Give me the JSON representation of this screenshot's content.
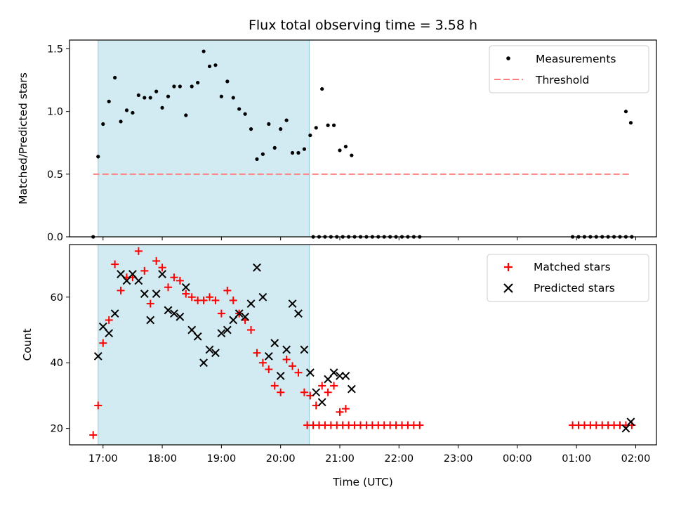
{
  "chart_data": [
    {
      "type": "scatter",
      "panel": "top",
      "title": "Flux total observing time = 3.58 h",
      "xlabel": "",
      "ylabel": "Matched/Predicted stars",
      "xlim": [
        "16:26",
        "02:21"
      ],
      "ylim": [
        0,
        1.57
      ],
      "yticks": [
        "0.0",
        "0.5",
        "1.0",
        "1.5"
      ],
      "shaded_interval": [
        "16:55",
        "20:29"
      ],
      "legend_position": "top-right",
      "series": [
        {
          "name": "Measurements",
          "kind": "points",
          "color": "#000000",
          "points": [
            [
              "16:50",
              0.0
            ],
            [
              "16:55",
              0.64
            ],
            [
              "17:00",
              0.9
            ],
            [
              "17:06",
              1.08
            ],
            [
              "17:12",
              1.27
            ],
            [
              "17:18",
              0.92
            ],
            [
              "17:24",
              1.01
            ],
            [
              "17:30",
              0.99
            ],
            [
              "17:36",
              1.13
            ],
            [
              "17:42",
              1.11
            ],
            [
              "17:48",
              1.11
            ],
            [
              "17:54",
              1.16
            ],
            [
              "18:00",
              1.03
            ],
            [
              "18:06",
              1.12
            ],
            [
              "18:12",
              1.2
            ],
            [
              "18:18",
              1.2
            ],
            [
              "18:24",
              0.97
            ],
            [
              "18:30",
              1.2
            ],
            [
              "18:36",
              1.23
            ],
            [
              "18:42",
              1.48
            ],
            [
              "18:48",
              1.36
            ],
            [
              "18:54",
              1.37
            ],
            [
              "19:00",
              1.12
            ],
            [
              "19:06",
              1.24
            ],
            [
              "19:12",
              1.11
            ],
            [
              "19:18",
              1.02
            ],
            [
              "19:24",
              0.98
            ],
            [
              "19:30",
              0.86
            ],
            [
              "19:36",
              0.62
            ],
            [
              "19:42",
              0.66
            ],
            [
              "19:48",
              0.9
            ],
            [
              "19:54",
              0.71
            ],
            [
              "20:00",
              0.86
            ],
            [
              "20:06",
              0.93
            ],
            [
              "20:12",
              0.67
            ],
            [
              "20:18",
              0.67
            ],
            [
              "20:24",
              0.7
            ],
            [
              "20:30",
              0.81
            ],
            [
              "20:36",
              0.87
            ],
            [
              "20:42",
              1.18
            ],
            [
              "20:48",
              0.89
            ],
            [
              "20:54",
              0.89
            ],
            [
              "21:00",
              0.69
            ],
            [
              "21:06",
              0.72
            ],
            [
              "21:12",
              0.65
            ],
            [
              "20:33",
              0.0
            ],
            [
              "20:39",
              0.0
            ],
            [
              "20:45",
              0.0
            ],
            [
              "20:51",
              0.0
            ],
            [
              "20:57",
              0.0
            ],
            [
              "21:03",
              0.0
            ],
            [
              "21:09",
              0.0
            ],
            [
              "21:15",
              0.0
            ],
            [
              "21:21",
              0.0
            ],
            [
              "21:27",
              0.0
            ],
            [
              "21:33",
              0.0
            ],
            [
              "21:39",
              0.0
            ],
            [
              "21:45",
              0.0
            ],
            [
              "21:51",
              0.0
            ],
            [
              "21:57",
              0.0
            ],
            [
              "22:03",
              0.0
            ],
            [
              "22:09",
              0.0
            ],
            [
              "22:15",
              0.0
            ],
            [
              "22:21",
              0.0
            ],
            [
              "00:56",
              0.0
            ],
            [
              "01:02",
              0.0
            ],
            [
              "01:08",
              0.0
            ],
            [
              "01:14",
              0.0
            ],
            [
              "01:20",
              0.0
            ],
            [
              "01:26",
              0.0
            ],
            [
              "01:32",
              0.0
            ],
            [
              "01:38",
              0.0
            ],
            [
              "01:44",
              0.0
            ],
            [
              "01:50",
              0.0
            ],
            [
              "01:56",
              0.0
            ],
            [
              "01:50",
              1.0
            ],
            [
              "01:55",
              0.91
            ]
          ]
        },
        {
          "name": "Threshold",
          "kind": "dashed-line",
          "color": "#ff7f7f",
          "x": [
            "16:50",
            "01:55"
          ],
          "y": [
            0.5,
            0.5
          ]
        }
      ]
    },
    {
      "type": "scatter",
      "panel": "bottom",
      "title": "",
      "xlabel": "Time (UTC)",
      "ylabel": "Count",
      "xlim": [
        "16:26",
        "02:21"
      ],
      "ylim": [
        15,
        76
      ],
      "yticks": [
        "20",
        "40",
        "60"
      ],
      "xticks": [
        "17:00",
        "18:00",
        "19:00",
        "20:00",
        "21:00",
        "22:00",
        "23:00",
        "00:00",
        "01:00",
        "02:00"
      ],
      "shaded_interval": [
        "16:55",
        "20:29"
      ],
      "legend_position": "top-right",
      "series": [
        {
          "name": "Matched stars",
          "marker": "plus",
          "color": "#ff0000",
          "points": [
            [
              "16:50",
              18
            ],
            [
              "16:55",
              27
            ],
            [
              "17:00",
              46
            ],
            [
              "17:06",
              53
            ],
            [
              "17:12",
              70
            ],
            [
              "17:18",
              62
            ],
            [
              "17:24",
              66
            ],
            [
              "17:30",
              66
            ],
            [
              "17:36",
              74
            ],
            [
              "17:42",
              68
            ],
            [
              "17:48",
              58
            ],
            [
              "17:54",
              71
            ],
            [
              "18:00",
              69
            ],
            [
              "18:06",
              63
            ],
            [
              "18:12",
              66
            ],
            [
              "18:18",
              65
            ],
            [
              "18:24",
              61
            ],
            [
              "18:30",
              60
            ],
            [
              "18:36",
              59
            ],
            [
              "18:42",
              59
            ],
            [
              "18:48",
              60
            ],
            [
              "18:54",
              59
            ],
            [
              "19:00",
              55
            ],
            [
              "19:06",
              62
            ],
            [
              "19:12",
              59
            ],
            [
              "19:18",
              55
            ],
            [
              "19:24",
              53
            ],
            [
              "19:30",
              50
            ],
            [
              "19:36",
              43
            ],
            [
              "19:42",
              40
            ],
            [
              "19:48",
              38
            ],
            [
              "19:54",
              33
            ],
            [
              "20:00",
              31
            ],
            [
              "20:06",
              41
            ],
            [
              "20:12",
              39
            ],
            [
              "20:18",
              37
            ],
            [
              "20:24",
              31
            ],
            [
              "20:30",
              30
            ],
            [
              "20:36",
              27
            ],
            [
              "20:42",
              33
            ],
            [
              "20:48",
              31
            ],
            [
              "20:54",
              33
            ],
            [
              "21:00",
              25
            ],
            [
              "21:06",
              26
            ],
            [
              "20:27",
              21
            ],
            [
              "20:33",
              21
            ],
            [
              "20:39",
              21
            ],
            [
              "20:45",
              21
            ],
            [
              "20:51",
              21
            ],
            [
              "20:57",
              21
            ],
            [
              "21:03",
              21
            ],
            [
              "21:09",
              21
            ],
            [
              "21:15",
              21
            ],
            [
              "21:21",
              21
            ],
            [
              "21:27",
              21
            ],
            [
              "21:33",
              21
            ],
            [
              "21:39",
              21
            ],
            [
              "21:45",
              21
            ],
            [
              "21:51",
              21
            ],
            [
              "21:57",
              21
            ],
            [
              "22:03",
              21
            ],
            [
              "22:09",
              21
            ],
            [
              "22:15",
              21
            ],
            [
              "22:21",
              21
            ],
            [
              "00:56",
              21
            ],
            [
              "01:02",
              21
            ],
            [
              "01:08",
              21
            ],
            [
              "01:14",
              21
            ],
            [
              "01:20",
              21
            ],
            [
              "01:26",
              21
            ],
            [
              "01:32",
              21
            ],
            [
              "01:38",
              21
            ],
            [
              "01:44",
              21
            ],
            [
              "01:50",
              21
            ],
            [
              "01:56",
              21
            ]
          ]
        },
        {
          "name": "Predicted stars",
          "marker": "x",
          "color": "#000000",
          "points": [
            [
              "16:55",
              42
            ],
            [
              "17:00",
              51
            ],
            [
              "17:06",
              49
            ],
            [
              "17:12",
              55
            ],
            [
              "17:18",
              67
            ],
            [
              "17:24",
              65
            ],
            [
              "17:30",
              67
            ],
            [
              "17:36",
              65
            ],
            [
              "17:42",
              61
            ],
            [
              "17:48",
              53
            ],
            [
              "17:54",
              61
            ],
            [
              "18:00",
              67
            ],
            [
              "18:06",
              56
            ],
            [
              "18:12",
              55
            ],
            [
              "18:18",
              54
            ],
            [
              "18:24",
              63
            ],
            [
              "18:30",
              50
            ],
            [
              "18:36",
              48
            ],
            [
              "18:42",
              40
            ],
            [
              "18:48",
              44
            ],
            [
              "18:54",
              43
            ],
            [
              "19:00",
              49
            ],
            [
              "19:06",
              50
            ],
            [
              "19:12",
              53
            ],
            [
              "19:18",
              55
            ],
            [
              "19:24",
              54
            ],
            [
              "19:30",
              58
            ],
            [
              "19:36",
              69
            ],
            [
              "19:42",
              60
            ],
            [
              "19:48",
              42
            ],
            [
              "19:54",
              46
            ],
            [
              "20:00",
              36
            ],
            [
              "20:06",
              44
            ],
            [
              "20:12",
              58
            ],
            [
              "20:18",
              55
            ],
            [
              "20:24",
              44
            ],
            [
              "20:30",
              37
            ],
            [
              "20:36",
              31
            ],
            [
              "20:42",
              28
            ],
            [
              "20:48",
              35
            ],
            [
              "20:54",
              37
            ],
            [
              "21:00",
              36
            ],
            [
              "21:06",
              36
            ],
            [
              "21:12",
              32
            ],
            [
              "01:50",
              20
            ],
            [
              "01:55",
              22
            ]
          ]
        }
      ]
    }
  ],
  "colors": {
    "shade": "#add8e6",
    "matched": "#ff0000",
    "predicted": "#000000",
    "threshold": "#ff7f7f"
  }
}
